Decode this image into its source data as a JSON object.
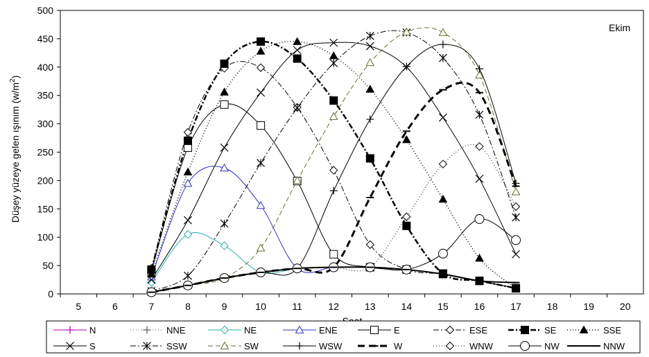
{
  "chart_data": {
    "type": "line",
    "annotation": "Ekim",
    "xlabel": "Saat",
    "ylabel": "Düşey yüzeye gelen ışınım (w/m²)",
    "ylabel_prefix": "Düşey yüzeye gelen ışınım (w/m",
    "ylabel_sup": "2",
    "ylabel_suffix": ")",
    "xlim": [
      4.5,
      20.5
    ],
    "ylim": [
      0,
      500
    ],
    "x_ticks": [
      5,
      6,
      7,
      8,
      9,
      10,
      11,
      12,
      13,
      14,
      15,
      16,
      17,
      18,
      19,
      20
    ],
    "y_ticks": [
      0,
      50,
      100,
      150,
      200,
      250,
      300,
      350,
      400,
      450,
      500
    ],
    "grid": false,
    "legend_position": "bottom",
    "series": [
      {
        "name": "N",
        "x": [
          7,
          8,
          9,
          10,
          11,
          12,
          13,
          14,
          15,
          16,
          17
        ],
        "y": [
          3,
          15,
          28,
          38,
          45,
          47,
          47,
          43,
          35,
          23,
          10
        ],
        "color": "#b000b0",
        "dash": "",
        "marker": "plus",
        "width": 1
      },
      {
        "name": "NNE",
        "x": [
          7,
          8,
          9,
          10,
          11,
          12,
          13,
          14,
          15,
          16,
          17
        ],
        "y": [
          3,
          15,
          28,
          38,
          45,
          47,
          47,
          43,
          35,
          23,
          10
        ],
        "color": "#555555",
        "dash": "1,3",
        "marker": "plus",
        "width": 1
      },
      {
        "name": "NE",
        "x": [
          7,
          8,
          9,
          10,
          11,
          12,
          13,
          14,
          15,
          16,
          17
        ],
        "y": [
          20,
          105,
          85,
          38,
          45,
          47,
          47,
          43,
          35,
          23,
          10
        ],
        "color": "#2ab0b0",
        "dash": "",
        "marker": "diamond",
        "width": 1
      },
      {
        "name": "ENE",
        "x": [
          7,
          8,
          9,
          10,
          11,
          12,
          13,
          14,
          15,
          16,
          17
        ],
        "y": [
          30,
          195,
          222,
          156,
          45,
          47,
          47,
          43,
          35,
          23,
          10
        ],
        "color": "#3030c0",
        "dash": "",
        "marker": "triangle",
        "width": 1
      },
      {
        "name": "E",
        "x": [
          7,
          8,
          9,
          10,
          11,
          12,
          13,
          14,
          15,
          16,
          17
        ],
        "y": [
          40,
          258,
          334,
          297,
          199,
          70,
          47,
          43,
          35,
          23,
          10
        ],
        "color": "#000000",
        "dash": "",
        "marker": "square",
        "width": 1
      },
      {
        "name": "ESE",
        "x": [
          7,
          8,
          9,
          10,
          11,
          12,
          13,
          14,
          15,
          16,
          17
        ],
        "y": [
          45,
          285,
          398,
          399,
          329,
          218,
          87,
          43,
          35,
          23,
          10
        ],
        "color": "#000000",
        "dash": "8,3,2,3",
        "marker": "diamond",
        "width": 1
      },
      {
        "name": "SE",
        "x": [
          7,
          8,
          9,
          10,
          11,
          12,
          13,
          14,
          15,
          16,
          17
        ],
        "y": [
          43,
          270,
          406,
          445,
          415,
          341,
          239,
          120,
          36,
          23,
          10
        ],
        "color": "#000000",
        "dash": "8,3,2,3",
        "marker": "square-filled",
        "width": 2.5
      },
      {
        "name": "SSE",
        "x": [
          7,
          8,
          9,
          10,
          11,
          12,
          13,
          14,
          15,
          16,
          17
        ],
        "y": [
          35,
          215,
          356,
          428,
          445,
          420,
          361,
          272,
          167,
          63,
          10
        ],
        "color": "#000000",
        "dash": "1,3",
        "marker": "triangle-filled",
        "width": 1.5
      },
      {
        "name": "S",
        "x": [
          7,
          8,
          9,
          10,
          11,
          12,
          13,
          14,
          15,
          16,
          17
        ],
        "y": [
          25,
          130,
          258,
          355,
          430,
          443,
          437,
          400,
          311,
          203,
          70
        ],
        "color": "#000000",
        "dash": "",
        "marker": "x",
        "width": 1
      },
      {
        "name": "SSW",
        "x": [
          7,
          8,
          9,
          10,
          11,
          12,
          13,
          14,
          15,
          16,
          17
        ],
        "y": [
          5,
          32,
          124,
          231,
          328,
          407,
          455,
          461,
          416,
          316,
          135
        ],
        "color": "#000000",
        "dash": "8,3,2,3",
        "marker": "star",
        "width": 1
      },
      {
        "name": "SW",
        "x": [
          7,
          8,
          9,
          10,
          11,
          12,
          13,
          14,
          15,
          16,
          17
        ],
        "y": [
          3,
          15,
          28,
          81,
          200,
          313,
          408,
          462,
          461,
          386,
          180
        ],
        "color": "#6a6a30",
        "dash": "7,4",
        "marker": "triangle",
        "width": 1
      },
      {
        "name": "WSW",
        "x": [
          7,
          8,
          9,
          10,
          11,
          12,
          13,
          14,
          15,
          16,
          17
        ],
        "y": [
          3,
          15,
          28,
          38,
          45,
          182,
          308,
          401,
          440,
          397,
          195
        ],
        "color": "#000000",
        "dash": "",
        "marker": "plus",
        "width": 1
      },
      {
        "name": "W",
        "x": [
          7,
          8,
          9,
          10,
          11,
          12,
          13,
          14,
          15,
          16,
          17
        ],
        "y": [
          3,
          15,
          28,
          38,
          45,
          47,
          170,
          287,
          360,
          355,
          190
        ],
        "color": "#000000",
        "dash": "10,6",
        "marker": "dash",
        "width": 3
      },
      {
        "name": "WNW",
        "x": [
          7,
          8,
          9,
          10,
          11,
          12,
          13,
          14,
          15,
          16,
          17
        ],
        "y": [
          3,
          15,
          28,
          38,
          45,
          47,
          47,
          136,
          229,
          260,
          154
        ],
        "color": "#000000",
        "dash": "1,3",
        "marker": "diamond",
        "width": 1
      },
      {
        "name": "NW",
        "x": [
          7,
          8,
          9,
          10,
          11,
          12,
          13,
          14,
          15,
          16,
          17
        ],
        "y": [
          3,
          15,
          28,
          38,
          45,
          47,
          47,
          43,
          71,
          132,
          95
        ],
        "color": "#000000",
        "dash": "",
        "marker": "circle",
        "width": 1
      },
      {
        "name": "NNW",
        "x": [
          7,
          8,
          9,
          10,
          11,
          12,
          13,
          14,
          15,
          16,
          17
        ],
        "y": [
          3,
          15,
          28,
          38,
          45,
          47,
          47,
          43,
          35,
          23,
          20
        ],
        "color": "#000000",
        "dash": "",
        "marker": "dash",
        "width": 2
      }
    ]
  }
}
